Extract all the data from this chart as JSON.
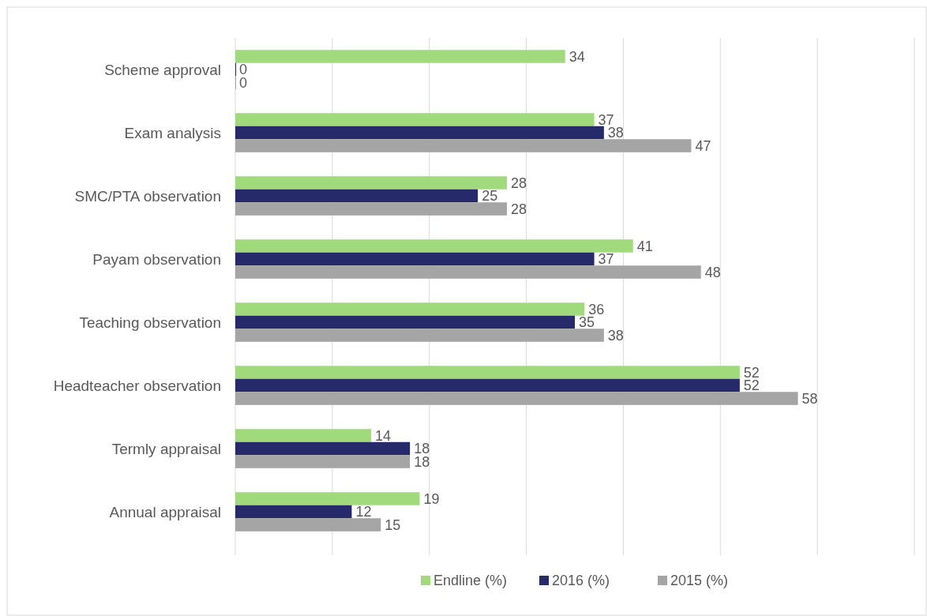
{
  "chart_data": {
    "type": "bar",
    "orientation": "horizontal",
    "categories": [
      "Scheme approval",
      "Exam analysis",
      "SMC/PTA observation",
      "Payam observation",
      "Teaching observation",
      "Headteacher observation",
      "Termly appraisal",
      "Annual appraisal"
    ],
    "series": [
      {
        "name": "Endline (%)",
        "color": "#a1da7c",
        "values": [
          34,
          37,
          28,
          41,
          36,
          52,
          14,
          19
        ]
      },
      {
        "name": "2016 (%)",
        "color": "#262a6b",
        "values": [
          0,
          38,
          25,
          37,
          35,
          52,
          18,
          12
        ]
      },
      {
        "name": "2015 (%)",
        "color": "#a5a5a5",
        "values": [
          0,
          47,
          28,
          48,
          38,
          58,
          18,
          15
        ]
      }
    ],
    "xlim": [
      0,
      70
    ],
    "xticks": [
      {
        "value": 0,
        "label": null
      },
      {
        "value": 10,
        "label": null
      },
      {
        "value": 20,
        "label": null
      },
      {
        "value": 30,
        "label": null
      },
      {
        "value": 40,
        "label": null
      },
      {
        "value": 50,
        "label": null
      },
      {
        "value": 60,
        "label": null
      },
      {
        "value": 70,
        "label": null
      }
    ],
    "tick_labels": "y",
    "grid": "x",
    "data_labels": true,
    "legend": "bottom"
  }
}
